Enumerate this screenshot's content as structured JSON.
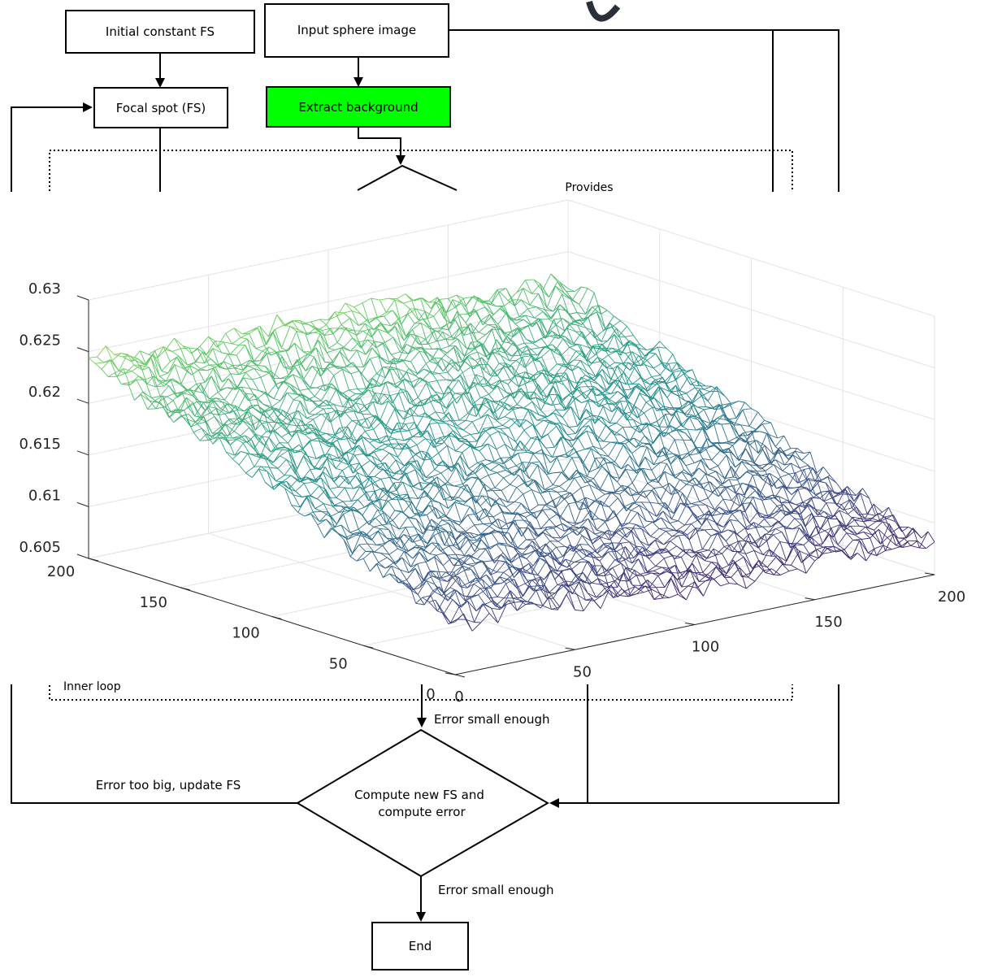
{
  "flowchart": {
    "boxes": {
      "initial_fs": "Initial constant FS",
      "input_sphere": "Input sphere image",
      "focal_spot": "Focal spot (FS)",
      "extract_background": "Extract background",
      "end": "End"
    },
    "decision": {
      "line1": "Compute new FS and",
      "line2": "compute error"
    },
    "labels": {
      "provides": "Provides",
      "inner_loop": "Inner loop",
      "error_small_inner": "Error small enough",
      "error_too_big": "Error too big, update FS",
      "error_small_outer": "Error small enough"
    },
    "colors": {
      "extract_background_fill": "#00ff00",
      "line": "#000000"
    }
  },
  "chart_data": {
    "type": "surface",
    "style": "mesh",
    "colormap": "viridis",
    "title": "",
    "xlabel": "",
    "ylabel": "",
    "zlabel": "",
    "xlim": [
      0,
      200
    ],
    "ylim": [
      0,
      200
    ],
    "zlim": [
      0.605,
      0.63
    ],
    "x_ticks": [
      "0",
      "50",
      "100",
      "150",
      "200"
    ],
    "y_ticks": [
      "0",
      "50",
      "100",
      "150",
      "200"
    ],
    "z_ticks": [
      "0.605",
      "0.61",
      "0.615",
      "0.62",
      "0.625",
      "0.63"
    ],
    "grid": true,
    "corner_values": {
      "x0_y200": 0.6245,
      "x200_y200": 0.6225,
      "x200_y0": 0.6075,
      "x0_y0": 0.6095
    },
    "noise_amplitude": 0.001
  }
}
